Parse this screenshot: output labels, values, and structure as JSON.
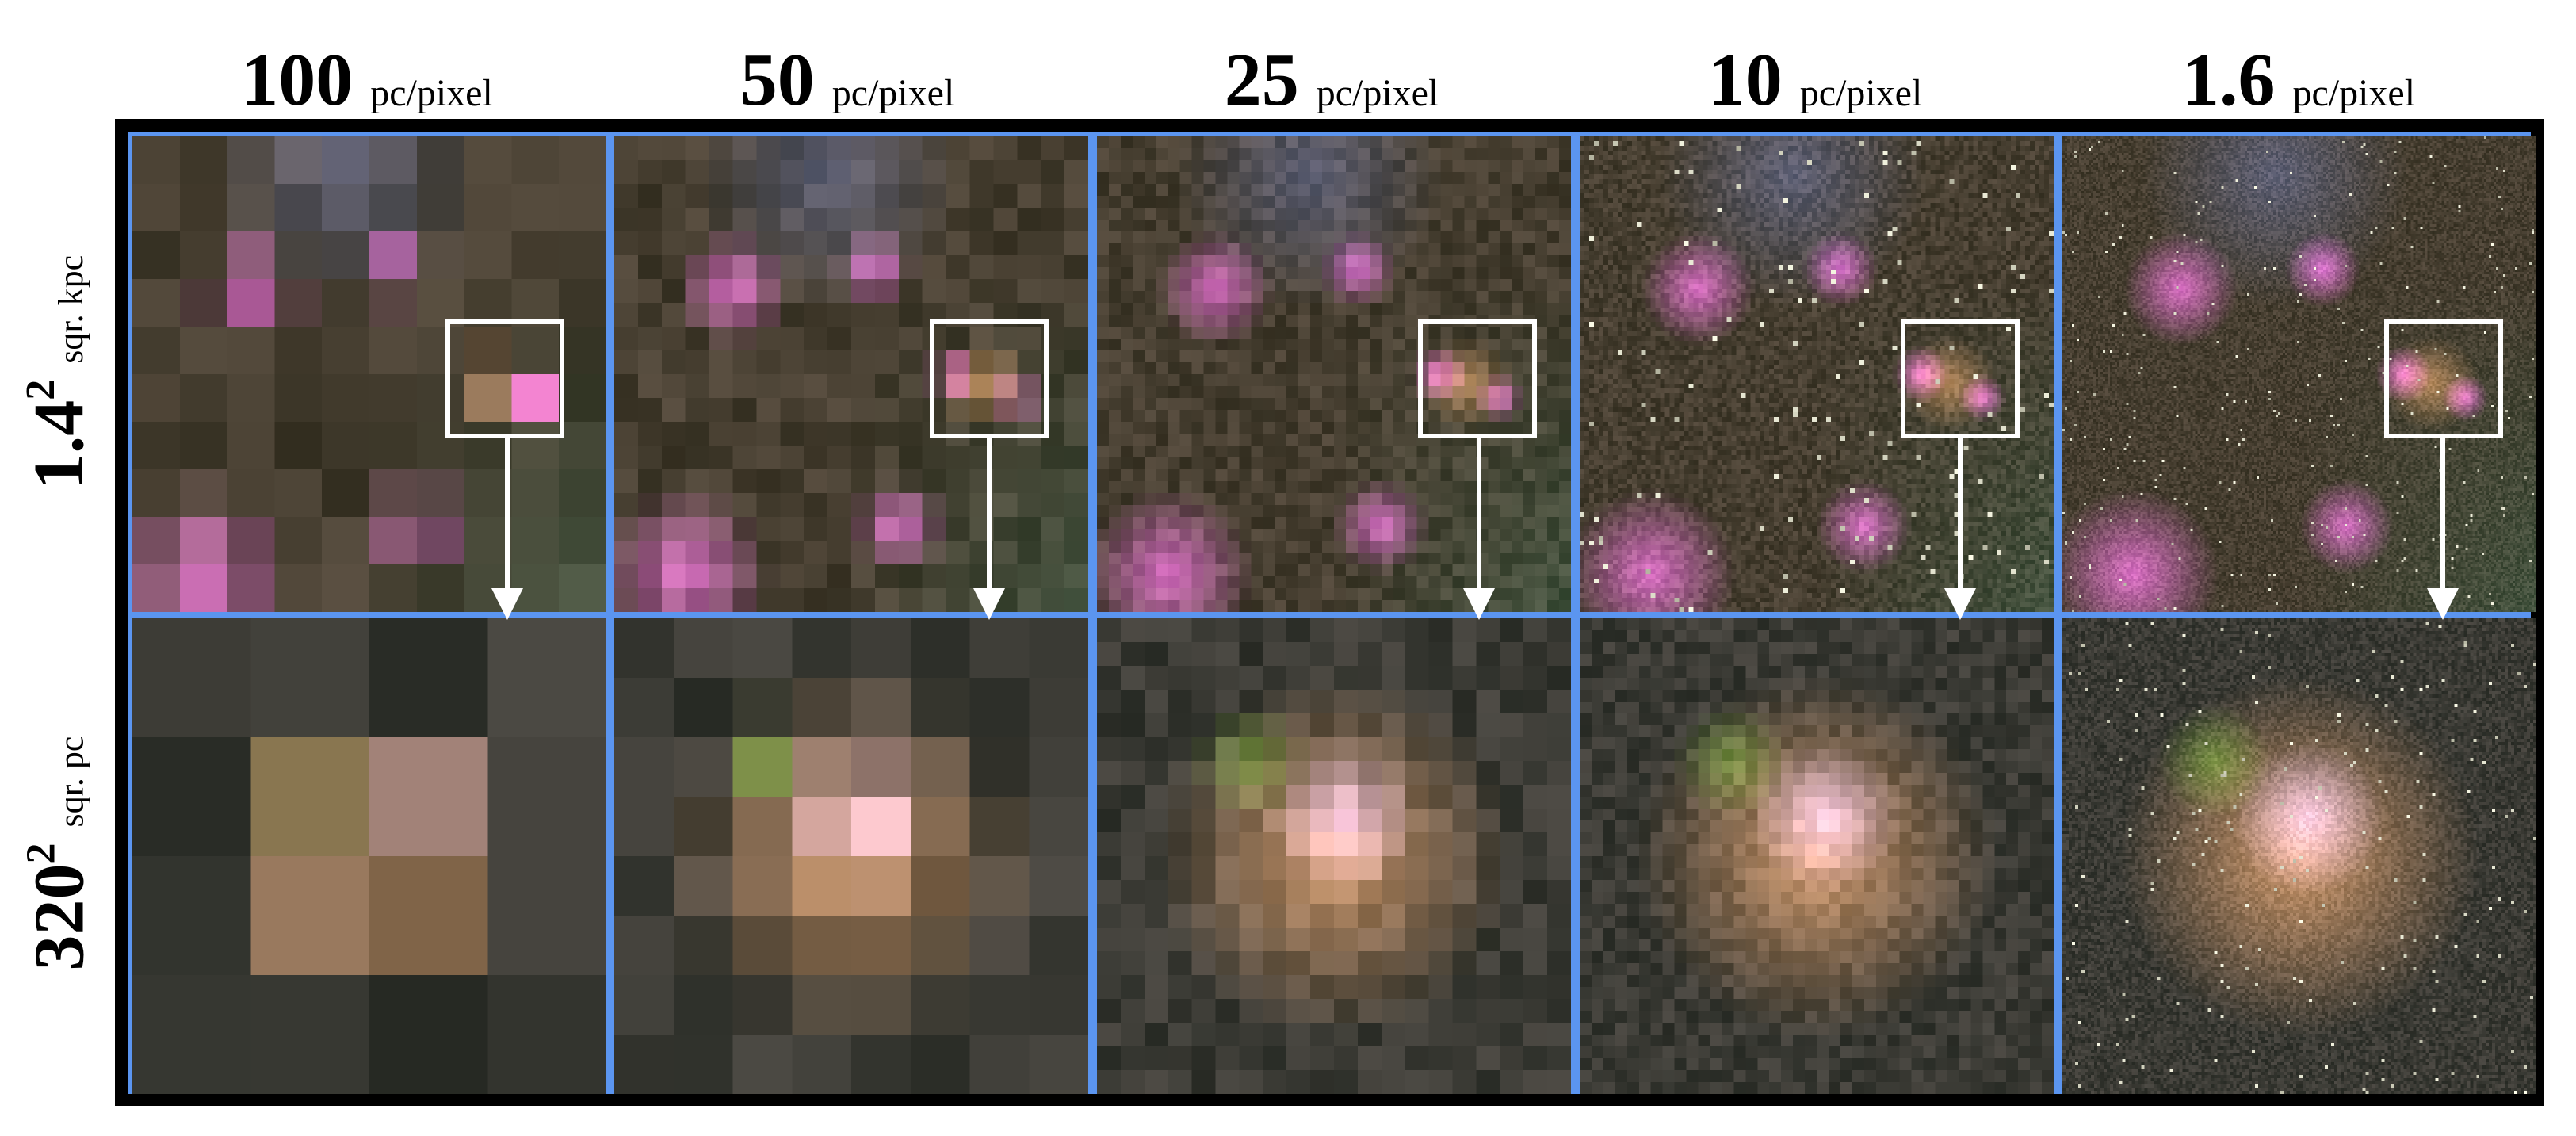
{
  "columns": [
    {
      "resolution": "100",
      "unit": "pc/pixel"
    },
    {
      "resolution": "50",
      "unit": "pc/pixel"
    },
    {
      "resolution": "25",
      "unit": "pc/pixel"
    },
    {
      "resolution": "10",
      "unit": "pc/pixel"
    },
    {
      "resolution": "1.6",
      "unit": "pc/pixel"
    }
  ],
  "rows": [
    {
      "size": "1.4",
      "exponent": "2",
      "unit": "sqr. kpc"
    },
    {
      "size": "320",
      "exponent": "2",
      "unit": "sqr. pc"
    }
  ],
  "colors": {
    "frame_border": "#000000",
    "panel_divider": "#5b95f0",
    "zoom_box": "#ffffff",
    "arrow": "#ffffff"
  }
}
